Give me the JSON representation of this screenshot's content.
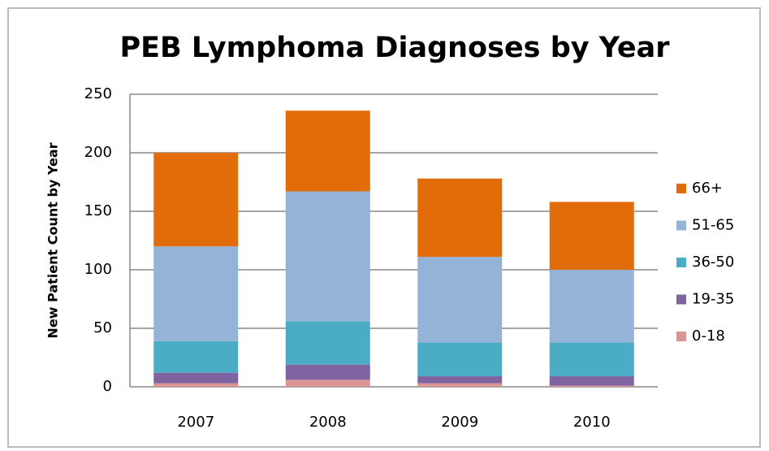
{
  "chart_data": {
    "type": "stacked-bar",
    "title": "PEB Lymphoma Diagnoses by Year",
    "y_label": "New Patient Count by Year",
    "categories": [
      "2007",
      "2008",
      "2009",
      "2010"
    ],
    "series": [
      {
        "name": "0-18",
        "color": "#d99694",
        "values": [
          3,
          6,
          3,
          1
        ]
      },
      {
        "name": "19-35",
        "color": "#8064a2",
        "values": [
          9,
          13,
          6,
          8
        ]
      },
      {
        "name": "36-50",
        "color": "#4bacc6",
        "values": [
          27,
          37,
          29,
          29
        ]
      },
      {
        "name": "51-65",
        "color": "#95b3d7",
        "values": [
          81,
          111,
          73,
          62
        ]
      },
      {
        "name": "66+",
        "color": "#e36c0a",
        "values": [
          80,
          69,
          67,
          58
        ]
      }
    ],
    "ylim": [
      0,
      250
    ],
    "yticks": [
      0,
      50,
      100,
      150,
      200,
      250
    ],
    "grid": true,
    "legend": "right"
  }
}
